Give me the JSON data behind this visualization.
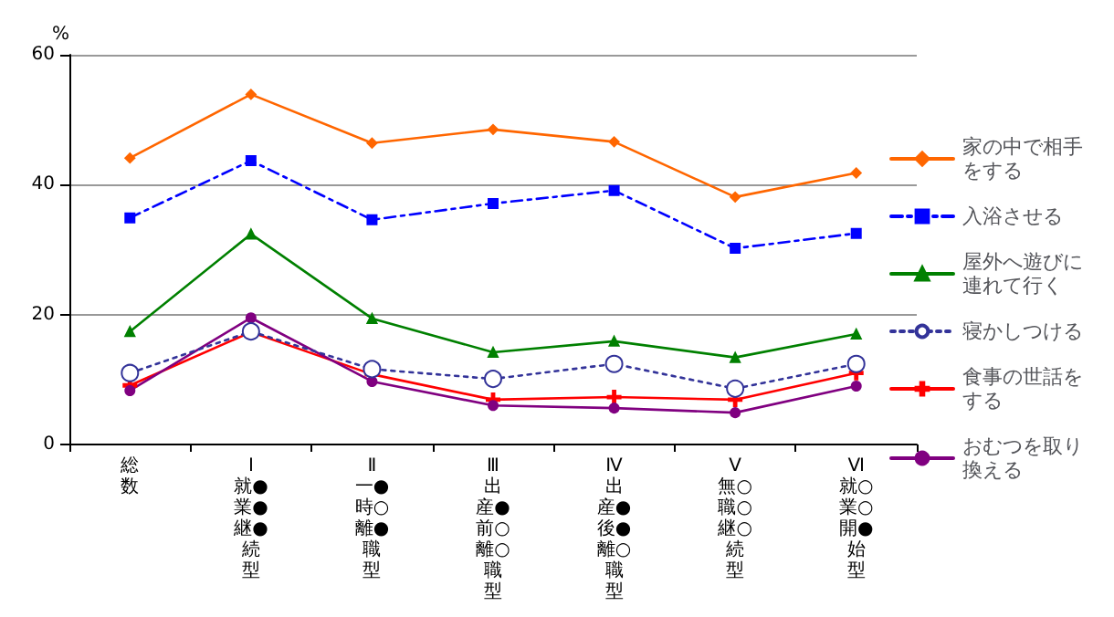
{
  "chart_data": {
    "type": "line",
    "ylabel": "%",
    "categories": [
      "総数",
      "Ⅰ就●業●継●続型",
      "Ⅱ一●時○離●職型",
      "Ⅲ出産●前○離○職型",
      "Ⅳ出産●後●離○職型",
      "Ⅴ無○職○継○続型",
      "Ⅵ就○業○開●始型"
    ],
    "ylim": [
      0,
      60
    ],
    "yticks": [
      0,
      20,
      40,
      60
    ],
    "grid": "y",
    "legend": "right",
    "series": [
      {
        "name": "家の中で相手をする",
        "color": "#ff6600",
        "marker": "diamond",
        "line_style": "solid",
        "values": [
          44.1,
          53.9,
          46.4,
          48.5,
          46.6,
          38.1,
          41.8
        ]
      },
      {
        "name": "入浴させる",
        "color": "#0000ff",
        "marker": "square",
        "line_style": "dashdot",
        "values": [
          34.9,
          43.7,
          34.6,
          37.1,
          39.1,
          30.2,
          32.5
        ]
      },
      {
        "name": "屋外へ遊びに連れて行く",
        "color": "#008000",
        "marker": "triangle",
        "line_style": "solid",
        "values": [
          17.4,
          32.4,
          19.4,
          14.2,
          15.9,
          13.4,
          17.0
        ]
      },
      {
        "name": "寝かしつける",
        "color": "#333399",
        "marker": "circle",
        "line_style": "dotted",
        "values": [
          11.0,
          17.4,
          11.6,
          10.1,
          12.4,
          8.6,
          12.4
        ]
      },
      {
        "name": "食事の世話をする",
        "color": "#ff0000",
        "marker": "cross",
        "line_style": "solid",
        "values": [
          9.1,
          17.3,
          10.8,
          6.9,
          7.3,
          6.9,
          11.0
        ]
      },
      {
        "name": "おむつを取り換える",
        "color": "#800080",
        "marker": "circle",
        "line_style": "solid",
        "values": [
          8.3,
          19.5,
          9.7,
          6.0,
          5.6,
          4.9,
          9.0
        ]
      }
    ]
  }
}
